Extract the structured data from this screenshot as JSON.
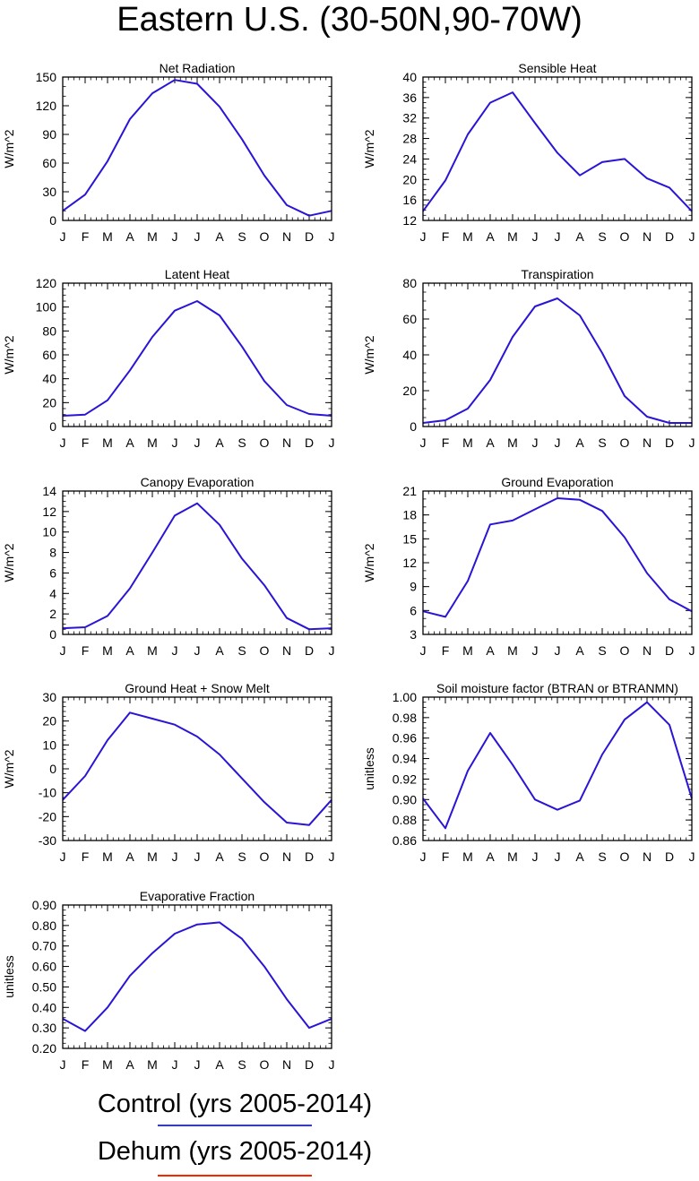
{
  "page": {
    "title": "Eastern U.S. (30-50N,90-70W)"
  },
  "legend": [
    {
      "label": "Control (yrs 2005-2014)",
      "color": "#3333ff"
    },
    {
      "label": "Dehum (yrs 2005-2014)",
      "color": "#ff2200"
    }
  ],
  "series_color": "#2a14d6",
  "chart_data": [
    {
      "type": "line",
      "title": "Net Radiation",
      "ylabel": "W/m^2",
      "categories": [
        "J",
        "F",
        "M",
        "A",
        "M",
        "J",
        "J",
        "A",
        "S",
        "O",
        "N",
        "D",
        "J"
      ],
      "ylim": [
        0,
        150
      ],
      "yticks": [
        0,
        30,
        60,
        90,
        120,
        150
      ],
      "ytick_labels": [
        "0",
        "30",
        "60",
        "90",
        "120",
        "150"
      ],
      "yminor_step": 10,
      "values": [
        10,
        27,
        62,
        106,
        133,
        147,
        143,
        119,
        85,
        47,
        16,
        5,
        10
      ]
    },
    {
      "type": "line",
      "title": "Sensible Heat",
      "ylabel": "W/m^2",
      "categories": [
        "J",
        "F",
        "M",
        "A",
        "M",
        "J",
        "J",
        "A",
        "S",
        "O",
        "N",
        "D",
        "J"
      ],
      "ylim": [
        12,
        40
      ],
      "yticks": [
        12,
        16,
        20,
        24,
        28,
        32,
        36,
        40
      ],
      "ytick_labels": [
        "12",
        "16",
        "20",
        "24",
        "28",
        "32",
        "36",
        "40"
      ],
      "yminor_step": 1,
      "values": [
        13.8,
        19.8,
        28.8,
        35.0,
        37.0,
        31.0,
        25.2,
        20.8,
        23.4,
        24.0,
        20.2,
        18.4,
        13.8
      ]
    },
    {
      "type": "line",
      "title": "Latent Heat",
      "ylabel": "W/m^2",
      "categories": [
        "J",
        "F",
        "M",
        "A",
        "M",
        "J",
        "J",
        "A",
        "S",
        "O",
        "N",
        "D",
        "J"
      ],
      "ylim": [
        0,
        120
      ],
      "yticks": [
        0,
        20,
        40,
        60,
        80,
        100,
        120
      ],
      "ytick_labels": [
        "0",
        "20",
        "40",
        "60",
        "80",
        "100",
        "120"
      ],
      "yminor_step": 5,
      "values": [
        9,
        10,
        22,
        47,
        75,
        97,
        105,
        93,
        67,
        38,
        18,
        10.5,
        9
      ]
    },
    {
      "type": "line",
      "title": "Transpiration",
      "ylabel": "W/m^2",
      "categories": [
        "J",
        "F",
        "M",
        "A",
        "M",
        "J",
        "J",
        "A",
        "S",
        "O",
        "N",
        "D",
        "J"
      ],
      "ylim": [
        0,
        80
      ],
      "yticks": [
        0,
        20,
        40,
        60,
        80
      ],
      "ytick_labels": [
        "0",
        "20",
        "40",
        "60",
        "80"
      ],
      "yminor_step": 5,
      "values": [
        2,
        3.5,
        10,
        26,
        50,
        67,
        71.5,
        62,
        41,
        17,
        5.5,
        2,
        2
      ]
    },
    {
      "type": "line",
      "title": "Canopy Evaporation",
      "ylabel": "W/m^2",
      "categories": [
        "J",
        "F",
        "M",
        "A",
        "M",
        "J",
        "J",
        "A",
        "S",
        "O",
        "N",
        "D",
        "J"
      ],
      "ylim": [
        0,
        14
      ],
      "yticks": [
        0,
        2,
        4,
        6,
        8,
        10,
        12,
        14
      ],
      "ytick_labels": [
        "0",
        "2",
        "4",
        "6",
        "8",
        "10",
        "12",
        "14"
      ],
      "yminor_step": 0.5,
      "values": [
        0.6,
        0.7,
        1.8,
        4.5,
        8.0,
        11.6,
        12.8,
        10.7,
        7.4,
        4.8,
        1.6,
        0.5,
        0.6
      ]
    },
    {
      "type": "line",
      "title": "Ground Evaporation",
      "ylabel": "W/m^2",
      "categories": [
        "J",
        "F",
        "M",
        "A",
        "M",
        "J",
        "J",
        "A",
        "S",
        "O",
        "N",
        "D",
        "J"
      ],
      "ylim": [
        3,
        21
      ],
      "yticks": [
        3,
        6,
        9,
        12,
        15,
        18,
        21
      ],
      "ytick_labels": [
        "3",
        "6",
        "9",
        "12",
        "15",
        "18",
        "21"
      ],
      "yminor_step": 1,
      "values": [
        5.9,
        5.2,
        9.7,
        16.8,
        17.3,
        18.7,
        20.1,
        19.9,
        18.5,
        15.2,
        10.7,
        7.4,
        5.9
      ]
    },
    {
      "type": "line",
      "title": "Ground Heat + Snow Melt",
      "ylabel": "W/m^2",
      "categories": [
        "J",
        "F",
        "M",
        "A",
        "M",
        "J",
        "J",
        "A",
        "S",
        "O",
        "N",
        "D",
        "J"
      ],
      "ylim": [
        -30,
        30
      ],
      "yticks": [
        -30,
        -20,
        -10,
        0,
        10,
        20,
        30
      ],
      "ytick_labels": [
        "-30",
        "-20",
        "-10",
        "0",
        "10",
        "20",
        "30"
      ],
      "yminor_step": 2,
      "values": [
        -13,
        -3,
        12,
        23.5,
        21,
        18.5,
        13.5,
        6,
        -4,
        -14,
        -22.5,
        -23.5,
        -13
      ]
    },
    {
      "type": "line",
      "title": "Soil moisture factor (BTRAN or BTRANMN)",
      "ylabel": "unitless",
      "categories": [
        "J",
        "F",
        "M",
        "A",
        "M",
        "J",
        "J",
        "A",
        "S",
        "O",
        "N",
        "D",
        "J"
      ],
      "ylim": [
        0.86,
        1.0
      ],
      "yticks": [
        0.86,
        0.88,
        0.9,
        0.92,
        0.94,
        0.96,
        0.98,
        1.0
      ],
      "ytick_labels": [
        "0.86",
        "0.88",
        "0.90",
        "0.92",
        "0.94",
        "0.96",
        "0.98",
        "1.00"
      ],
      "yminor_step": 0.005,
      "values": [
        0.901,
        0.872,
        0.928,
        0.965,
        0.934,
        0.9,
        0.89,
        0.899,
        0.944,
        0.978,
        0.995,
        0.973,
        0.901
      ]
    },
    {
      "type": "line",
      "title": "Evaporative Fraction",
      "ylabel": "unitless",
      "categories": [
        "J",
        "F",
        "M",
        "A",
        "M",
        "J",
        "J",
        "A",
        "S",
        "O",
        "N",
        "D",
        "J"
      ],
      "ylim": [
        0.2,
        0.9
      ],
      "yticks": [
        0.2,
        0.3,
        0.4,
        0.5,
        0.6,
        0.7,
        0.8,
        0.9
      ],
      "ytick_labels": [
        "0.20",
        "0.30",
        "0.40",
        "0.50",
        "0.60",
        "0.70",
        "0.80",
        "0.90"
      ],
      "yminor_step": 0.025,
      "values": [
        0.345,
        0.285,
        0.4,
        0.555,
        0.665,
        0.76,
        0.805,
        0.815,
        0.735,
        0.6,
        0.44,
        0.3,
        0.345
      ]
    }
  ]
}
